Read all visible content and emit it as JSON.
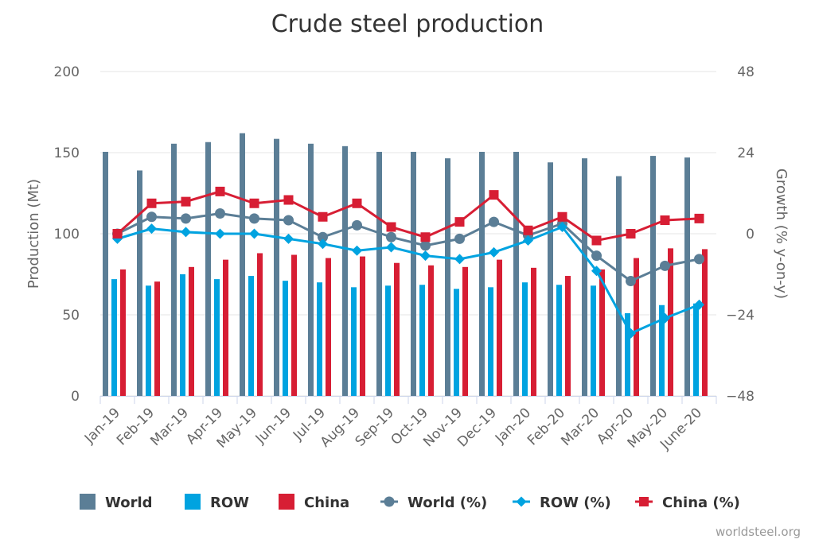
{
  "chart_data": {
    "type": "bar",
    "title": "Crude steel production",
    "ylabel_left": "Production (Mt)",
    "ylabel_right": "Growth (% y-on-y)",
    "ylim_left": [
      0,
      200
    ],
    "ylim_right": [
      -48,
      48
    ],
    "yticks_left": [
      "0",
      "50",
      "100",
      "150",
      "200"
    ],
    "yticks_right": [
      "-48",
      "-24",
      "0",
      "24",
      "48"
    ],
    "categories": [
      "Jan-19",
      "Feb-19",
      "Mar-19",
      "Apr-19",
      "May-19",
      "Jun-19",
      "Jul-19",
      "Aug-19",
      "Sep-19",
      "Oct-19",
      "Nov-19",
      "Dec-19",
      "Jan-20",
      "Feb-20",
      "Mar-20",
      "Apr-20",
      "May-20",
      "June-20"
    ],
    "bar_series": [
      {
        "name": "World",
        "color": "#5b7e96",
        "values": [
          150.5,
          139,
          155.5,
          156.5,
          162,
          158.5,
          155.5,
          154,
          150.5,
          150.5,
          146.5,
          150.5,
          150.5,
          144,
          146.5,
          135.5,
          148,
          147
        ]
      },
      {
        "name": "ROW",
        "color": "#00a3e0",
        "values": [
          72,
          68,
          75,
          72,
          74,
          71,
          70,
          67,
          68,
          68.5,
          66,
          67,
          70,
          68.5,
          68,
          51,
          56,
          57
        ]
      },
      {
        "name": "China",
        "color": "#d71e34",
        "values": [
          78,
          70.5,
          79.5,
          84,
          88,
          87,
          85,
          86,
          82,
          80.5,
          79.5,
          84,
          79,
          74,
          78,
          85,
          91,
          90.5
        ]
      }
    ],
    "line_series": [
      {
        "name": "World (%)",
        "color": "#5b7e96",
        "marker": "circle",
        "values": [
          0,
          5,
          4.5,
          6,
          4.5,
          4,
          -1,
          2.5,
          -1,
          -3.5,
          -1.5,
          3.5,
          -0.5,
          3,
          -6.5,
          -14,
          -9.5,
          -7.5
        ]
      },
      {
        "name": "ROW (%)",
        "color": "#00a3e0",
        "marker": "diamond",
        "values": [
          -1.5,
          1.5,
          0.5,
          0,
          0,
          -1.5,
          -3,
          -5,
          -4,
          -6.5,
          -7.5,
          -5.5,
          -2,
          2,
          -11,
          -29.5,
          -25,
          -21
        ]
      },
      {
        "name": "China (%)",
        "color": "#d71e34",
        "marker": "square",
        "values": [
          0,
          9,
          9.5,
          12.5,
          9,
          10,
          5,
          9,
          2,
          -1,
          3.5,
          11.5,
          1,
          5,
          -2,
          0,
          4,
          4.5
        ]
      }
    ],
    "grid": true,
    "legend_position": "bottom"
  },
  "credit": "worldsteel.org"
}
